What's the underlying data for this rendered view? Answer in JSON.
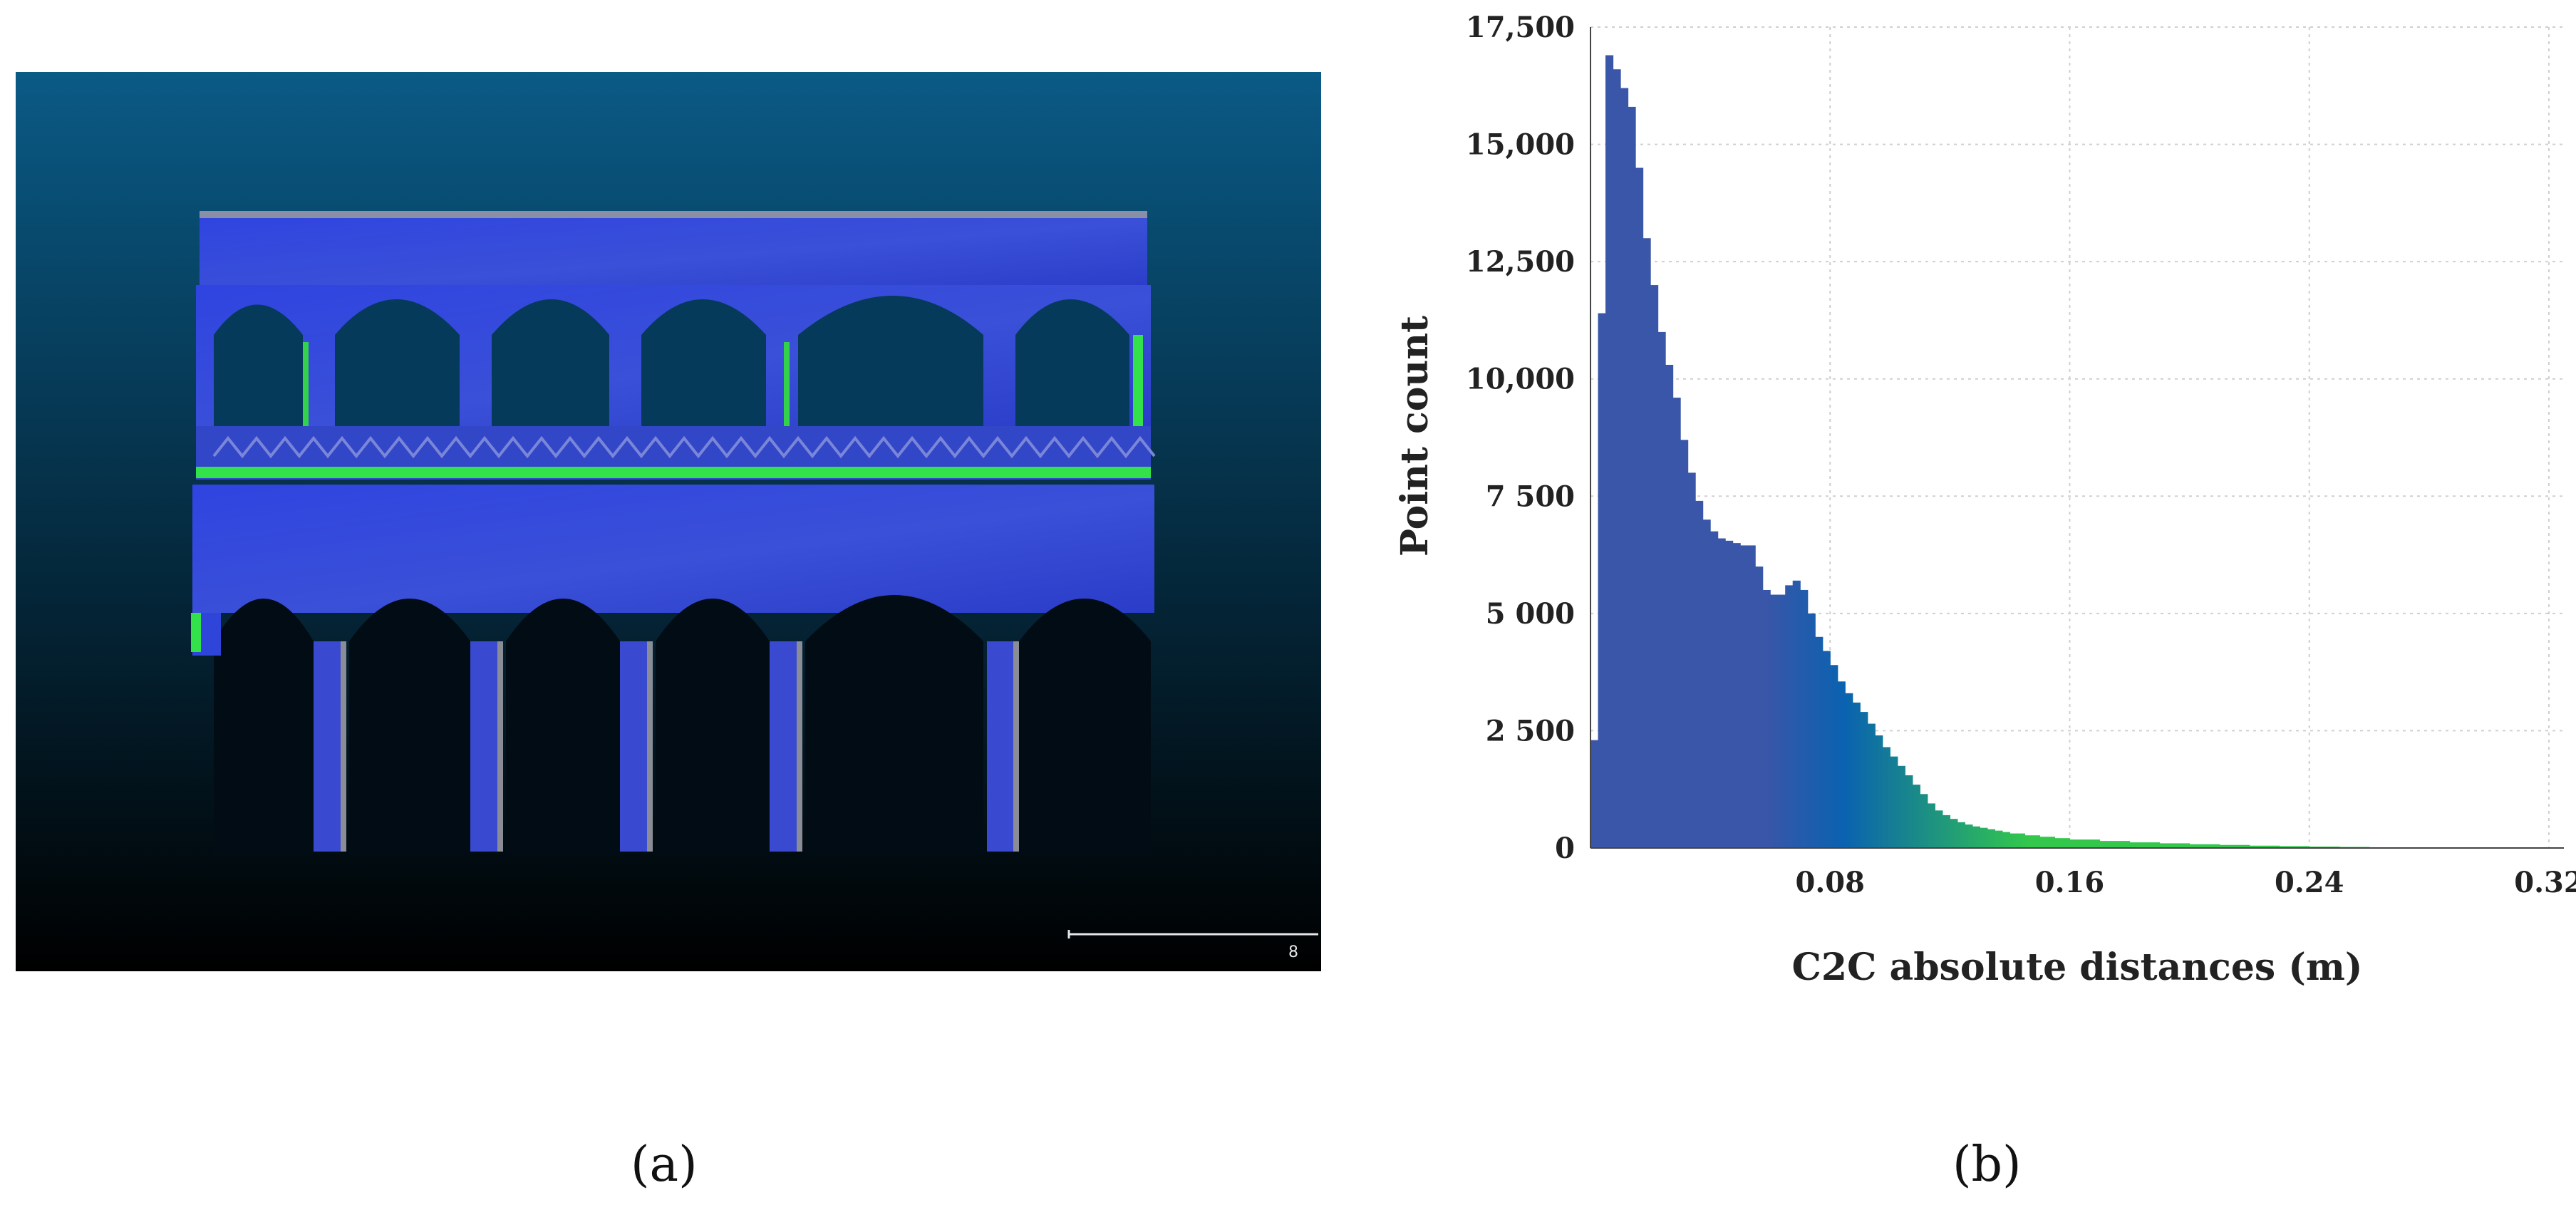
{
  "panels": {
    "a": {
      "label": "(a)",
      "scale_label": "8"
    },
    "b": {
      "label": "(b)"
    }
  },
  "colors": {
    "viewport_top": "#0a5a86",
    "viewport_bottom": "#000000",
    "cloud_blue": "#2f44e0",
    "cloud_green": "#33e24a",
    "hist_start": "#3a56a8",
    "hist_mid": "#0a62b0",
    "hist_end": "#33c84c"
  },
  "chart_data": {
    "type": "bar",
    "title": "",
    "xlabel": "C2C absolute distances (m)",
    "ylabel": "Point count",
    "xlim": [
      0,
      0.325
    ],
    "ylim": [
      0,
      17500
    ],
    "x_ticks": [
      0.08,
      0.16,
      0.24,
      0.32
    ],
    "x_tick_labels": [
      "0.08",
      "0.16",
      "0.24",
      "0.32"
    ],
    "y_ticks": [
      0,
      2500,
      5000,
      7500,
      10000,
      12500,
      15000,
      17500
    ],
    "y_tick_labels": [
      "0",
      "2 500",
      "5 000",
      "7 500",
      "10,000",
      "12,500",
      "15,000",
      "17,500"
    ],
    "grid": true,
    "series": [
      {
        "x": [
          0.0,
          0.0025,
          0.005,
          0.0075,
          0.01,
          0.0125,
          0.015,
          0.0175,
          0.02,
          0.0225,
          0.025,
          0.0275,
          0.03,
          0.0325,
          0.035,
          0.0375,
          0.04,
          0.0425,
          0.045,
          0.0475,
          0.05,
          0.0525,
          0.055,
          0.0575,
          0.06,
          0.0625,
          0.065,
          0.0675,
          0.07,
          0.0725,
          0.075,
          0.0775,
          0.08,
          0.0825,
          0.085,
          0.0875,
          0.09,
          0.0925,
          0.095,
          0.0975,
          0.1,
          0.1025,
          0.105,
          0.1075,
          0.11,
          0.1125,
          0.115,
          0.1175,
          0.12,
          0.1225,
          0.125,
          0.1275,
          0.13,
          0.1325,
          0.135,
          0.1375,
          0.14,
          0.145,
          0.15,
          0.155,
          0.16,
          0.17,
          0.18,
          0.19,
          0.2,
          0.21,
          0.22,
          0.23,
          0.24,
          0.25,
          0.26,
          0.27,
          0.28,
          0.29,
          0.3,
          0.31
        ],
        "values": [
          2300,
          11400,
          16900,
          16600,
          16200,
          15800,
          14500,
          13000,
          12000,
          11000,
          10300,
          9600,
          8700,
          8000,
          7400,
          7000,
          6750,
          6600,
          6550,
          6500,
          6450,
          6450,
          6000,
          5500,
          5400,
          5400,
          5600,
          5700,
          5500,
          5000,
          4500,
          4200,
          3900,
          3550,
          3300,
          3100,
          2900,
          2650,
          2400,
          2150,
          1950,
          1750,
          1550,
          1350,
          1150,
          950,
          800,
          700,
          620,
          550,
          500,
          460,
          430,
          400,
          370,
          340,
          310,
          270,
          240,
          210,
          180,
          150,
          120,
          100,
          80,
          65,
          50,
          40,
          30,
          22,
          15,
          10,
          6,
          3,
          1,
          0
        ]
      }
    ]
  }
}
